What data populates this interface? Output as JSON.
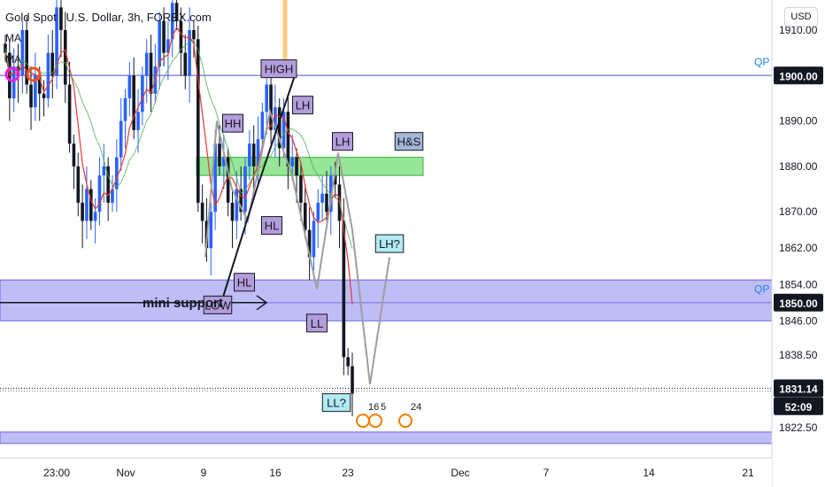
{
  "header": {
    "title": "Gold Spot / U.S. Dollar, 3h, FOREX.com",
    "indicator1": "MA",
    "indicator2": "MA",
    "currency": "USD"
  },
  "colors": {
    "up": "#2962ff",
    "down": "#131722",
    "ma": "#e53935",
    "zone_blue": "#b4b2f5",
    "zone_green": "#7ee07e",
    "pattern_line": "#9e9e9e",
    "price_badge": "#131722"
  },
  "chart_data": {
    "type": "candlestick",
    "symbol": "XAUUSD",
    "timeframe": "3h",
    "ylim": [
      1818,
      1916
    ],
    "y_ticks": [
      "1910.00",
      "1900.00",
      "1890.00",
      "1880.00",
      "1870.00",
      "1862.00",
      "1854.00",
      "1846.00",
      "1838.50",
      "1831.14",
      "1822.50"
    ],
    "x_ticks": [
      "23:00",
      "Nov",
      "9",
      "16",
      "23",
      "Dec",
      "7",
      "14",
      "21"
    ],
    "price_labels": [
      {
        "text": "1900.00",
        "value": 1900
      },
      {
        "text": "1850.00",
        "value": 1850
      },
      {
        "text": "1831.14",
        "value": 1831.14
      },
      {
        "text": "52:09",
        "value": 1827.2
      }
    ],
    "qp_labels": [
      {
        "text": "QP",
        "value": 1903
      },
      {
        "text": "QP",
        "value": 1853
      }
    ],
    "horizontal_lines": [
      1900,
      1850,
      1821.5
    ],
    "zones": [
      {
        "name": "mini support zone",
        "from": 1846,
        "to": 1855
      },
      {
        "name": "green zone",
        "from": 1878,
        "to": 1882
      },
      {
        "name": "bottom zone",
        "from": 1819,
        "to": 1821.5
      }
    ],
    "annotations": [
      "HIGH",
      "LH",
      "HH",
      "LH",
      "H&S",
      "HL",
      "HL",
      "LOW",
      "LL",
      "LH?",
      "LL?",
      "mini support"
    ],
    "events": [
      "16",
      "5",
      "24"
    ],
    "closes": [
      1905,
      1895,
      1902,
      1900,
      1910,
      1898,
      1893,
      1900,
      1896,
      1895,
      1905,
      1900,
      1915,
      1910,
      1898,
      1885,
      1880,
      1872,
      1868,
      1875,
      1868,
      1870,
      1878,
      1880,
      1872,
      1875,
      1882,
      1890,
      1895,
      1900,
      1888,
      1892,
      1900,
      1905,
      1896,
      1902,
      1912,
      1905,
      1908,
      1916,
      1912,
      1905,
      1900,
      1910,
      1908,
      1872,
      1868,
      1862,
      1870,
      1885,
      1880,
      1882,
      1872,
      1868,
      1875,
      1870,
      1880,
      1885,
      1880,
      1886,
      1892,
      1898,
      1888,
      1893,
      1884,
      1892,
      1880,
      1882,
      1878,
      1872,
      1866,
      1860,
      1868,
      1872,
      1874,
      1870,
      1878,
      1876,
      1868,
      1838,
      1836,
      1830
    ]
  }
}
